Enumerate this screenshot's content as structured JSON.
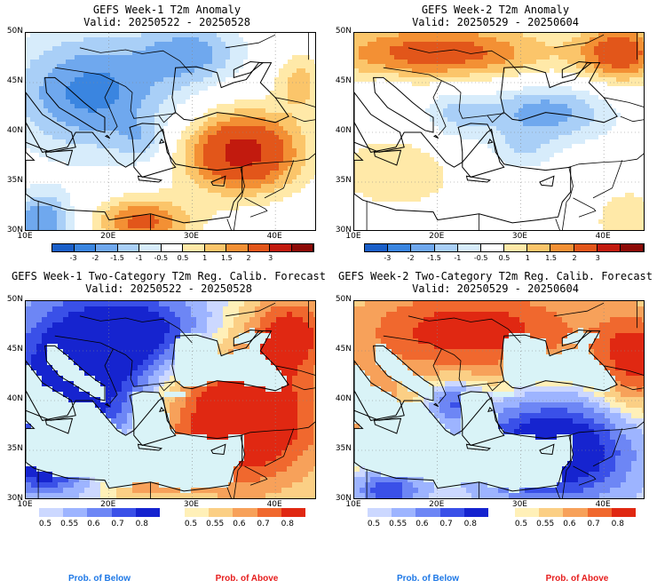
{
  "panels": [
    {
      "title1": "GEFS Week-1 T2m Anomaly",
      "title2": "Valid: 20250522 - 20250528",
      "type": "anom",
      "variant": 1
    },
    {
      "title1": "GEFS Week-2 T2m Anomaly",
      "title2": "Valid: 20250529 - 20250604",
      "type": "anom",
      "variant": 2
    },
    {
      "title1": "GEFS Week-1 Two-Category T2m Reg. Calib. Forecast",
      "title2": "Valid: 20250522 - 20250528",
      "type": "prob",
      "variant": 1
    },
    {
      "title1": "GEFS Week-2 Two-Category T2m Reg. Calib. Forecast",
      "title2": "Valid: 20250529 - 20250604",
      "type": "prob",
      "variant": 2
    }
  ],
  "lat_labels": [
    "50N",
    "45N",
    "40N",
    "35N",
    "30N"
  ],
  "lon_labels": [
    "10E",
    "20E",
    "30E",
    "40E"
  ],
  "anom_colorbar": {
    "ticks": [
      "-3",
      "-2",
      "-1.5",
      "-1",
      "-0.5",
      "0.5",
      "1",
      "1.5",
      "2",
      "3"
    ],
    "colors": [
      "#1a5fc8",
      "#3a85e0",
      "#6fa8ee",
      "#a9cff7",
      "#d7ecfb",
      "#ffffff",
      "#ffe9a8",
      "#fbc56a",
      "#f39034",
      "#e2561a",
      "#c21a0e",
      "#8d0a06"
    ]
  },
  "prob_colorbar": {
    "ticks": [
      "0.5",
      "0.55",
      "0.6",
      "0.7",
      "0.8"
    ],
    "below_colors": [
      "#ccd8ff",
      "#9db4ff",
      "#6d86f5",
      "#3a50e8",
      "#1624cf"
    ],
    "above_colors": [
      "#fff0b8",
      "#fbcf85",
      "#f7a15a",
      "#f0682e",
      "#e02812"
    ]
  },
  "footer": {
    "below": "Prob. of Below",
    "above": "Prob. of Above"
  },
  "colors": {
    "below_text": "#1e78e6",
    "above_text": "#e61e1e",
    "sea": "#d9f3f7",
    "border": "#000000"
  }
}
